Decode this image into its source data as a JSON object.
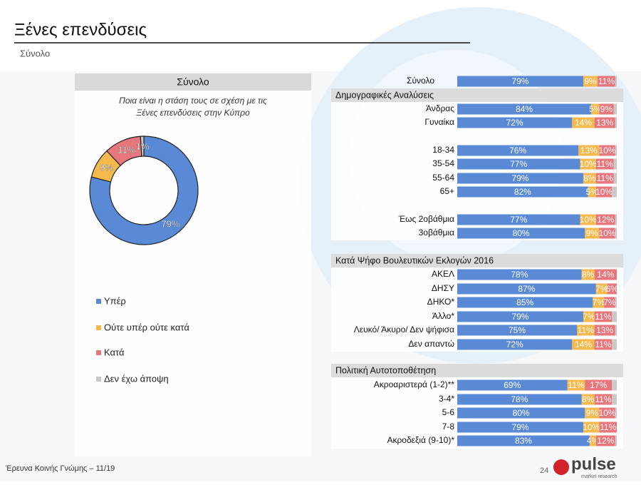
{
  "header": {
    "title": "Ξένες επενδύσεις",
    "subtitle": "Σύνολο"
  },
  "footer": {
    "source": "Έρευνα Κοινής Γνώμης – 11/19",
    "page": "24",
    "logo": "pulse",
    "logo_sub": "market research"
  },
  "chart_data": [
    {
      "type": "donut",
      "title": "Σύνολο",
      "subtitle": "Ποια είναι η στάση τους σε σχέση με τις Ξένες επενδύσεις στην Κύπρο",
      "categories": [
        "Υπέρ",
        "Ούτε υπέρ ούτε κατά",
        "Κατά",
        "Δεν έχω άποψη"
      ],
      "values": [
        79,
        9,
        11,
        1
      ],
      "value_labels": [
        "79%",
        "9%",
        "11%",
        "1%"
      ],
      "colors": [
        "#5a8ad6",
        "#f5b94e",
        "#e8767d",
        "#c9c9c9"
      ],
      "legend": "left"
    },
    {
      "type": "stacked-barh",
      "sections": [
        "Δημογραφικές Αναλύσεις",
        "Κατά Ψήφο Βουλευτικών Εκλογών 2016",
        "Πολιτική Αυτοτοποθέτηση"
      ],
      "categories": [
        "Σύνολο",
        "Άνδρας",
        "Γυναίκα",
        "18-34",
        "35-54",
        "55-64",
        "65+",
        "Έως 2οβάθμια",
        "3οβάθμια",
        "ΑΚΕΛ",
        "ΔΗΣΥ",
        "ΔΗΚΟ*",
        "Άλλο*",
        "Λευκό/ Άκυρο/ Δεν ψήφισα",
        "Δεν απαντώ",
        "Ακροαριστερά (1-2)**",
        "3-4*",
        "5-6",
        "7-8",
        "Ακροδεξιά (9-10)*"
      ],
      "xlim": [
        0,
        100
      ],
      "series": [
        {
          "color": "#5a8ad6",
          "values": [
            79,
            84,
            72,
            76,
            77,
            79,
            82,
            77,
            80,
            78,
            87,
            85,
            79,
            75,
            72,
            69,
            78,
            80,
            79,
            83
          ],
          "value_labels": [
            "79%",
            "84%",
            "72%",
            "76%",
            "77%",
            "79%",
            "82%",
            "77%",
            "80%",
            "78%",
            "87%",
            "85%",
            "79%",
            "75%",
            "72%",
            "69%",
            "78%",
            "80%",
            "79%",
            "83%"
          ]
        },
        {
          "color": "#f5b94e",
          "values": [
            9,
            5,
            14,
            13,
            10,
            8,
            5,
            10,
            9,
            8,
            7,
            7,
            7,
            11,
            14,
            11,
            8,
            9,
            10,
            4
          ],
          "value_labels": [
            "9%",
            "5%",
            "14%",
            "13%",
            "10%",
            "8%",
            "5%",
            "10%",
            "9%",
            "8%",
            "7%",
            "7%",
            "7%",
            "11%",
            "14%",
            "11%",
            "8%",
            "9%",
            "10%",
            "4%"
          ]
        },
        {
          "color": "#e8767d",
          "values": [
            11,
            9,
            13,
            10,
            11,
            11,
            10,
            12,
            10,
            14,
            6,
            7,
            11,
            13,
            11,
            17,
            11,
            10,
            11,
            12
          ],
          "value_labels": [
            "11%",
            "9%",
            "13%",
            "10%",
            "11%",
            "11%",
            "10%",
            "12%",
            "10%",
            "14%",
            "6%",
            "7%",
            "11%",
            "13%",
            "11%",
            "17%",
            "11%",
            "10%",
            "11%",
            "12%"
          ]
        },
        {
          "color": "#c9c9c9",
          "values": [
            1,
            2,
            1,
            1,
            2,
            2,
            3,
            1,
            1,
            0,
            0,
            1,
            3,
            1,
            3,
            3,
            3,
            1,
            0,
            1
          ]
        }
      ]
    }
  ]
}
